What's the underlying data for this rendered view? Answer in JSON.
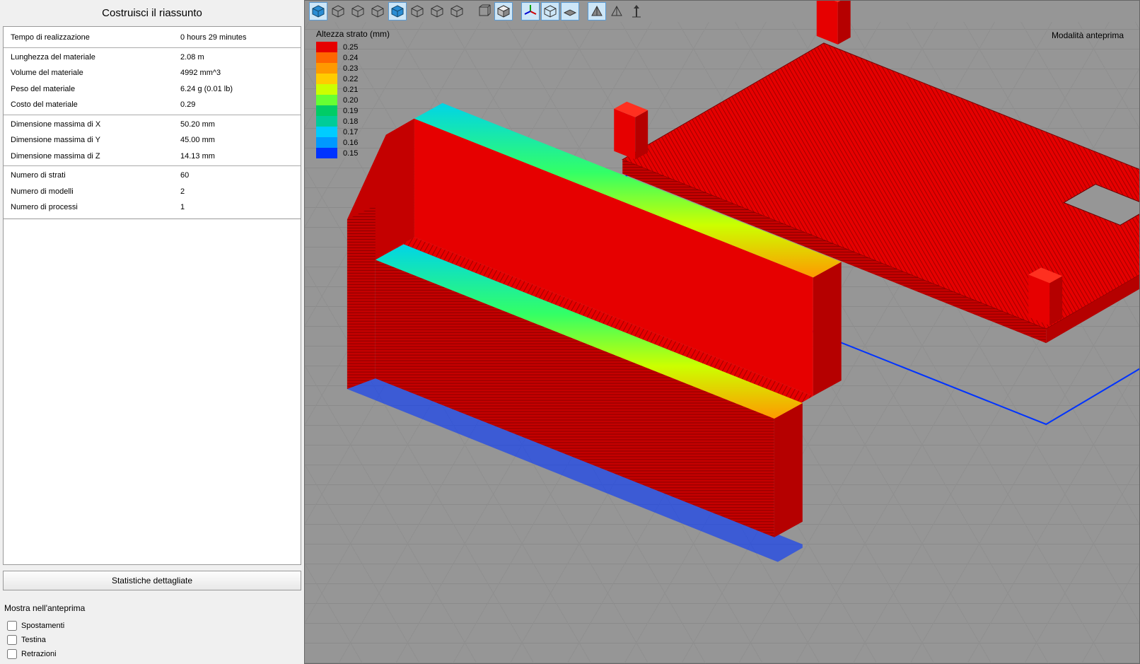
{
  "sidebar": {
    "title": "Costruisci il riassunto",
    "groups": [
      [
        {
          "label": "Tempo di realizzazione",
          "value": "0 hours 29 minutes"
        }
      ],
      [
        {
          "label": "Lunghezza del materiale",
          "value": "2.08 m"
        },
        {
          "label": "Volume del materiale",
          "value": "4992 mm^3"
        },
        {
          "label": "Peso del materiale",
          "value": "6.24 g (0.01 lb)"
        },
        {
          "label": "Costo del materiale",
          "value": "0.29"
        }
      ],
      [
        {
          "label": "Dimensione massima di X",
          "value": "50.20 mm"
        },
        {
          "label": "Dimensione massima di Y",
          "value": "45.00 mm"
        },
        {
          "label": "Dimensione massima di Z",
          "value": "14.13 mm"
        }
      ],
      [
        {
          "label": "Numero di strati",
          "value": "60"
        },
        {
          "label": "Numero di modelli",
          "value": "2"
        },
        {
          "label": "Numero di processi",
          "value": "1"
        }
      ]
    ],
    "stats_button": "Statistiche dettagliate",
    "preview_title": "Mostra nell'anteprima",
    "checkboxes": [
      {
        "label": "Spostamenti",
        "checked": false
      },
      {
        "label": "Testina",
        "checked": false
      },
      {
        "label": "Retrazioni",
        "checked": false
      }
    ]
  },
  "viewport": {
    "mode_label": "Modalità anteprima",
    "legend_title": "Altezza strato (mm)",
    "legend": [
      {
        "value": "0.25",
        "color": "#e60000"
      },
      {
        "value": "0.24",
        "color": "#ff6600"
      },
      {
        "value": "0.23",
        "color": "#ff9900"
      },
      {
        "value": "0.22",
        "color": "#ffcc00"
      },
      {
        "value": "0.21",
        "color": "#ccff00"
      },
      {
        "value": "0.20",
        "color": "#66ff33"
      },
      {
        "value": "0.19",
        "color": "#00cc66"
      },
      {
        "value": "0.18",
        "color": "#00cc99"
      },
      {
        "value": "0.17",
        "color": "#00ccff"
      },
      {
        "value": "0.16",
        "color": "#0099ff"
      },
      {
        "value": "0.15",
        "color": "#0033ff"
      }
    ],
    "toolbar": [
      {
        "name": "view-iso-front",
        "active": true,
        "type": "cube-solid"
      },
      {
        "name": "view-front",
        "active": false,
        "type": "cube-wire"
      },
      {
        "name": "view-back",
        "active": false,
        "type": "cube-wire"
      },
      {
        "name": "view-left",
        "active": false,
        "type": "cube-wire"
      },
      {
        "name": "view-right",
        "active": true,
        "type": "cube-solid"
      },
      {
        "name": "view-top",
        "active": false,
        "type": "cube-wire"
      },
      {
        "name": "view-bottom",
        "active": false,
        "type": "cube-wire"
      },
      {
        "name": "view-iso2",
        "active": false,
        "type": "cube-wire"
      },
      {
        "name": "sep"
      },
      {
        "name": "view-reset",
        "active": false,
        "type": "cube-outline"
      },
      {
        "name": "view-fit",
        "active": true,
        "type": "cube-shaded"
      },
      {
        "name": "sep"
      },
      {
        "name": "toggle-axes",
        "active": true,
        "type": "axes"
      },
      {
        "name": "toggle-box",
        "active": true,
        "type": "cube-wire"
      },
      {
        "name": "toggle-floor",
        "active": true,
        "type": "floor"
      },
      {
        "name": "sep"
      },
      {
        "name": "toggle-shading",
        "active": true,
        "type": "pyramid"
      },
      {
        "name": "toggle-wire",
        "active": false,
        "type": "pyramid-wire"
      },
      {
        "name": "toggle-move",
        "active": false,
        "type": "move-z"
      }
    ],
    "model": {
      "body_color": "#e60000",
      "body_shadow": "#b50000",
      "body_dark": "#8a0000",
      "top_gradient": [
        "#00d4e8",
        "#33ff66",
        "#ccff00",
        "#ff9900"
      ],
      "base_outline": "#0033ff",
      "hatch": "#770000"
    }
  }
}
